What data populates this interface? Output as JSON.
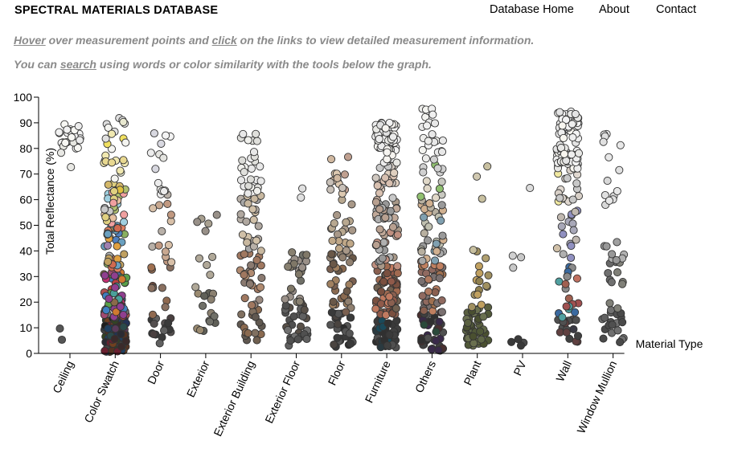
{
  "header": {
    "site_title": "SPECTRAL MATERIALS DATABASE",
    "nav": [
      {
        "label": "Database Home"
      },
      {
        "label": "About"
      },
      {
        "label": "Contact"
      }
    ]
  },
  "instructions": {
    "line1": {
      "hover_link": "Hover",
      "text_a": " over measurement points and ",
      "click_link": "click",
      "text_b": " on the links to view detailed measurement information."
    },
    "line2": {
      "text_a": "You can ",
      "search_link": "search",
      "text_b": " using words or color similarity with the tools below the graph."
    }
  },
  "chart_data": {
    "type": "scatter",
    "title": "",
    "xlabel": "Material Type",
    "ylabel": "Total Reflectance (%)",
    "ylim": [
      0,
      100
    ],
    "yticks": [
      0,
      10,
      20,
      30,
      40,
      50,
      60,
      70,
      80,
      90,
      100
    ],
    "jitter": "random horizontal jitter within each category",
    "point_outline_color": "#333333",
    "categories": [
      {
        "name": "Ceiling",
        "clusters": [
          {
            "lo": 80,
            "hi": 90,
            "n": 26,
            "colors": [
              "#f2f2f2",
              "#ececec",
              "#e6e6e0",
              "#f7f7f3"
            ]
          },
          {
            "lo": 72,
            "hi": 79,
            "n": 2,
            "colors": [
              "#e8e8e4"
            ]
          },
          {
            "lo": 4,
            "hi": 12,
            "n": 2,
            "colors": [
              "#555555"
            ]
          }
        ]
      },
      {
        "name": "Color Swatch",
        "clusters": [
          {
            "lo": 0.5,
            "hi": 14,
            "n": 70,
            "colors": [
              "#1f1f1f",
              "#2b2b33",
              "#3a2a2a",
              "#223355",
              "#553322",
              "#334422",
              "#6a2030",
              "#204060",
              "#444444",
              "#5a3a5a",
              "#2a4a4a",
              "#704020"
            ]
          },
          {
            "lo": 14,
            "hi": 32,
            "n": 55,
            "colors": [
              "#c04040",
              "#3f7fbf",
              "#5a9f4a",
              "#8f3f8f",
              "#d07a30",
              "#b05050",
              "#4a6aa0",
              "#8a6a4a",
              "#4aa09a",
              "#a04a70",
              "#707070",
              "#c03070"
            ]
          },
          {
            "lo": 32,
            "hi": 50,
            "n": 35,
            "colors": [
              "#d06a50",
              "#6aa0c0",
              "#8ab060",
              "#c0a060",
              "#a080b0",
              "#e08060",
              "#60b0a0",
              "#b0b0b0",
              "#e0a040",
              "#5080c0"
            ]
          },
          {
            "lo": 50,
            "hi": 67,
            "n": 28,
            "colors": [
              "#e0c040",
              "#d4b86a",
              "#e0d080",
              "#b0c070",
              "#e6c0a0",
              "#c8c8c8",
              "#f0a0a0",
              "#a0d0e0"
            ]
          },
          {
            "lo": 67,
            "hi": 92,
            "n": 24,
            "colors": [
              "#f0e060",
              "#e8e8d0",
              "#f4f4f0",
              "#e0e0e0",
              "#f0e8b0",
              "#e8d890",
              "#dcdcdc"
            ]
          }
        ]
      },
      {
        "name": "Door",
        "clusters": [
          {
            "lo": 3,
            "hi": 14,
            "n": 15,
            "colors": [
              "#3a3a3a",
              "#555050",
              "#4a4040",
              "#606060"
            ]
          },
          {
            "lo": 14,
            "hi": 34,
            "n": 10,
            "colors": [
              "#7a5040",
              "#906a50",
              "#8a7060",
              "#a07050"
            ]
          },
          {
            "lo": 34,
            "hi": 62,
            "n": 14,
            "colors": [
              "#c8a890",
              "#b8b0a8",
              "#d8c0a8",
              "#a8a0a0",
              "#c09880"
            ]
          },
          {
            "lo": 62,
            "hi": 88,
            "n": 14,
            "colors": [
              "#ececec",
              "#e4e4e0",
              "#f4f4f4",
              "#d8d8e0"
            ]
          }
        ]
      },
      {
        "name": "Exterior",
        "clusters": [
          {
            "lo": 7,
            "hi": 24,
            "n": 14,
            "colors": [
              "#707068",
              "#8a8070",
              "#606058",
              "#9a8a70"
            ]
          },
          {
            "lo": 24,
            "hi": 57,
            "n": 10,
            "colors": [
              "#a8a090",
              "#b0a898",
              "#989088"
            ]
          }
        ]
      },
      {
        "name": "Exterior Building",
        "clusters": [
          {
            "lo": 4,
            "hi": 18,
            "n": 16,
            "colors": [
              "#706050",
              "#807060",
              "#605850",
              "#8a6a50"
            ]
          },
          {
            "lo": 18,
            "hi": 40,
            "n": 28,
            "colors": [
              "#a07860",
              "#b08a70",
              "#9a8a80",
              "#c09878",
              "#8a7a70"
            ]
          },
          {
            "lo": 40,
            "hi": 62,
            "n": 26,
            "colors": [
              "#b8b0a8",
              "#c8b8a0",
              "#a8a8a8",
              "#d0c0a8",
              "#b0a8a0"
            ]
          },
          {
            "lo": 62,
            "hi": 88,
            "n": 26,
            "colors": [
              "#e8e8e8",
              "#f0f0ec",
              "#e0e0dc",
              "#dcdcd8"
            ]
          }
        ]
      },
      {
        "name": "Exterior Floor",
        "clusters": [
          {
            "lo": 3,
            "hi": 20,
            "n": 30,
            "colors": [
              "#505050",
              "#606060",
              "#707070",
              "#585048"
            ]
          },
          {
            "lo": 20,
            "hi": 40,
            "n": 24,
            "colors": [
              "#888070",
              "#807868",
              "#9a9088",
              "#707068"
            ]
          },
          {
            "lo": 60,
            "hi": 84,
            "n": 2,
            "colors": [
              "#e0e0e0"
            ]
          }
        ]
      },
      {
        "name": "Floor",
        "clusters": [
          {
            "lo": 2,
            "hi": 16,
            "n": 30,
            "colors": [
              "#3a3a3a",
              "#4a4440",
              "#555555",
              "#2e2e2e"
            ]
          },
          {
            "lo": 16,
            "hi": 40,
            "n": 32,
            "colors": [
              "#8a6a50",
              "#7a6050",
              "#a08060",
              "#908070",
              "#6a5848"
            ]
          },
          {
            "lo": 40,
            "hi": 60,
            "n": 18,
            "colors": [
              "#b8a890",
              "#c0a888",
              "#a89888"
            ]
          },
          {
            "lo": 60,
            "hi": 80,
            "n": 14,
            "colors": [
              "#d0b8a0",
              "#c8c0b8",
              "#dcc8b0",
              "#c0a090"
            ]
          }
        ]
      },
      {
        "name": "Furniture",
        "clusters": [
          {
            "lo": 2,
            "hi": 14,
            "n": 50,
            "colors": [
              "#303030",
              "#3a3a3a",
              "#2a3a40",
              "#404040",
              "#505050",
              "#1a4a5a"
            ]
          },
          {
            "lo": 14,
            "hi": 34,
            "n": 60,
            "colors": [
              "#7a5040",
              "#8a6050",
              "#a06a50",
              "#706050",
              "#905a4a",
              "#c07a60"
            ]
          },
          {
            "lo": 34,
            "hi": 60,
            "n": 55,
            "colors": [
              "#a89888",
              "#b8a090",
              "#c0a898",
              "#989898",
              "#b0b0b0",
              "#c09080"
            ]
          },
          {
            "lo": 60,
            "hi": 74,
            "n": 22,
            "colors": [
              "#d0c8c0",
              "#e0d0c0",
              "#c8c8c8",
              "#d8c0b0"
            ]
          },
          {
            "lo": 74,
            "hi": 90,
            "n": 48,
            "colors": [
              "#f2f2f2",
              "#ececec",
              "#e8e8e4",
              "#f6f4f0",
              "#e0e0e0"
            ]
          }
        ]
      },
      {
        "name": "Others",
        "clusters": [
          {
            "lo": 1,
            "hi": 16,
            "n": 40,
            "colors": [
              "#303030",
              "#404040",
              "#3a2a4a",
              "#4a3030",
              "#505050",
              "#2a4a3a"
            ]
          },
          {
            "lo": 16,
            "hi": 36,
            "n": 40,
            "colors": [
              "#8a6050",
              "#a07050",
              "#906a60",
              "#7a7070",
              "#b07a60",
              "#c08060"
            ]
          },
          {
            "lo": 36,
            "hi": 60,
            "n": 36,
            "colors": [
              "#a8a8a8",
              "#b8b0a0",
              "#c0c0b0",
              "#9a9a9a",
              "#d0b090",
              "#80a0b0"
            ]
          },
          {
            "lo": 60,
            "hi": 76,
            "n": 14,
            "colors": [
              "#c8c8c0",
              "#d0d0d0",
              "#e0d8c8",
              "#90c070"
            ]
          },
          {
            "lo": 76,
            "hi": 96,
            "n": 22,
            "colors": [
              "#f0f0f0",
              "#e8e8e8",
              "#ececea",
              "#f4f4f0"
            ]
          }
        ]
      },
      {
        "name": "Plant",
        "clusters": [
          {
            "lo": 3,
            "hi": 18,
            "n": 45,
            "colors": [
              "#5a6040",
              "#4a5030",
              "#606848",
              "#505838",
              "#6a7050"
            ]
          },
          {
            "lo": 18,
            "hi": 40,
            "n": 14,
            "colors": [
              "#a09060",
              "#b0a070",
              "#c0a060",
              "#908050"
            ]
          },
          {
            "lo": 40,
            "hi": 78,
            "n": 4,
            "colors": [
              "#c8c0a0",
              "#d0c8b0"
            ]
          }
        ]
      },
      {
        "name": "PV",
        "clusters": [
          {
            "lo": 3,
            "hi": 7,
            "n": 4,
            "colors": [
              "#3a3a3a",
              "#4a4a4a"
            ]
          },
          {
            "lo": 30,
            "hi": 40,
            "n": 3,
            "colors": [
              "#c8c8c8",
              "#d0d0d0"
            ]
          },
          {
            "lo": 64,
            "hi": 68,
            "n": 1,
            "colors": [
              "#dcdcdc"
            ]
          }
        ]
      },
      {
        "name": "Wall",
        "clusters": [
          {
            "lo": 3,
            "hi": 14,
            "n": 18,
            "colors": [
              "#404040",
              "#505050",
              "#3a3a44",
              "#604040"
            ]
          },
          {
            "lo": 14,
            "hi": 34,
            "n": 18,
            "colors": [
              "#a06050",
              "#3a6aa0",
              "#c07060",
              "#8a8a8a",
              "#a05050",
              "#50a0a0"
            ]
          },
          {
            "lo": 34,
            "hi": 56,
            "n": 16,
            "colors": [
              "#b0b0b0",
              "#c0b8b0",
              "#a8a8b8",
              "#d0c0a8",
              "#9090c0"
            ]
          },
          {
            "lo": 56,
            "hi": 72,
            "n": 16,
            "colors": [
              "#d8d0c8",
              "#e0d8d0",
              "#c8c8c8",
              "#f0e8a0"
            ]
          },
          {
            "lo": 72,
            "hi": 95,
            "n": 80,
            "colors": [
              "#f4f4f4",
              "#eeeeee",
              "#e8e8e6",
              "#f8f6f0",
              "#e4e4e4"
            ]
          }
        ]
      },
      {
        "name": "Window Mullion",
        "clusters": [
          {
            "lo": 4,
            "hi": 16,
            "n": 18,
            "colors": [
              "#505050",
              "#606060",
              "#4a4a4a",
              "#707070"
            ]
          },
          {
            "lo": 16,
            "hi": 36,
            "n": 12,
            "colors": [
              "#707070",
              "#808078",
              "#686868"
            ]
          },
          {
            "lo": 36,
            "hi": 56,
            "n": 8,
            "colors": [
              "#a0a0a0",
              "#b0b0b0",
              "#989898"
            ]
          },
          {
            "lo": 56,
            "hi": 86,
            "n": 14,
            "colors": [
              "#e0e0e0",
              "#e8e8e8",
              "#d8d8d8"
            ]
          }
        ]
      }
    ]
  }
}
